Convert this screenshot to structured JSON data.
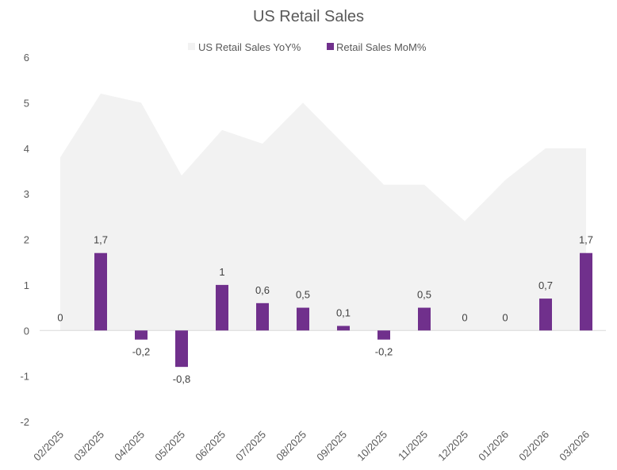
{
  "chart_data": {
    "type": "bar",
    "title": "US Retail Sales",
    "xlabel": "",
    "ylabel": "",
    "ylim": [
      -2,
      6
    ],
    "yticks": [
      6,
      5,
      4,
      3,
      2,
      1,
      0,
      -1,
      -2
    ],
    "ytick_labels": [
      "6",
      "5",
      "4",
      "3",
      "2",
      "1",
      "0",
      "-1",
      "-2"
    ],
    "grid": false,
    "legend_position": "top",
    "categories": [
      "02/2025",
      "03/2025",
      "04/2025",
      "05/2025",
      "06/2025",
      "07/2025",
      "08/2025",
      "09/2025",
      "10/2025",
      "11/2025",
      "12/2025",
      "01/2026",
      "02/2026",
      "03/2026"
    ],
    "series": [
      {
        "name": "US Retail Sales YoY%",
        "type": "area",
        "color": "#f2f2f2",
        "values": [
          3.8,
          5.2,
          5.0,
          3.4,
          4.4,
          4.1,
          5.0,
          4.1,
          3.2,
          3.2,
          2.4,
          3.3,
          4.0,
          4.0
        ]
      },
      {
        "name": "Retail Sales MoM%",
        "type": "bar",
        "color": "#70308c",
        "values": [
          0,
          1.7,
          -0.2,
          -0.8,
          1,
          0.6,
          0.5,
          0.1,
          -0.2,
          0.5,
          0,
          0,
          0.7,
          1.7
        ],
        "data_labels": [
          "0",
          "1,7",
          "-0,2",
          "-0,8",
          "1",
          "0,6",
          "0,5",
          "0,1",
          "-0,2",
          "0,5",
          "0",
          "0",
          "0,7",
          "1,7"
        ]
      }
    ]
  }
}
